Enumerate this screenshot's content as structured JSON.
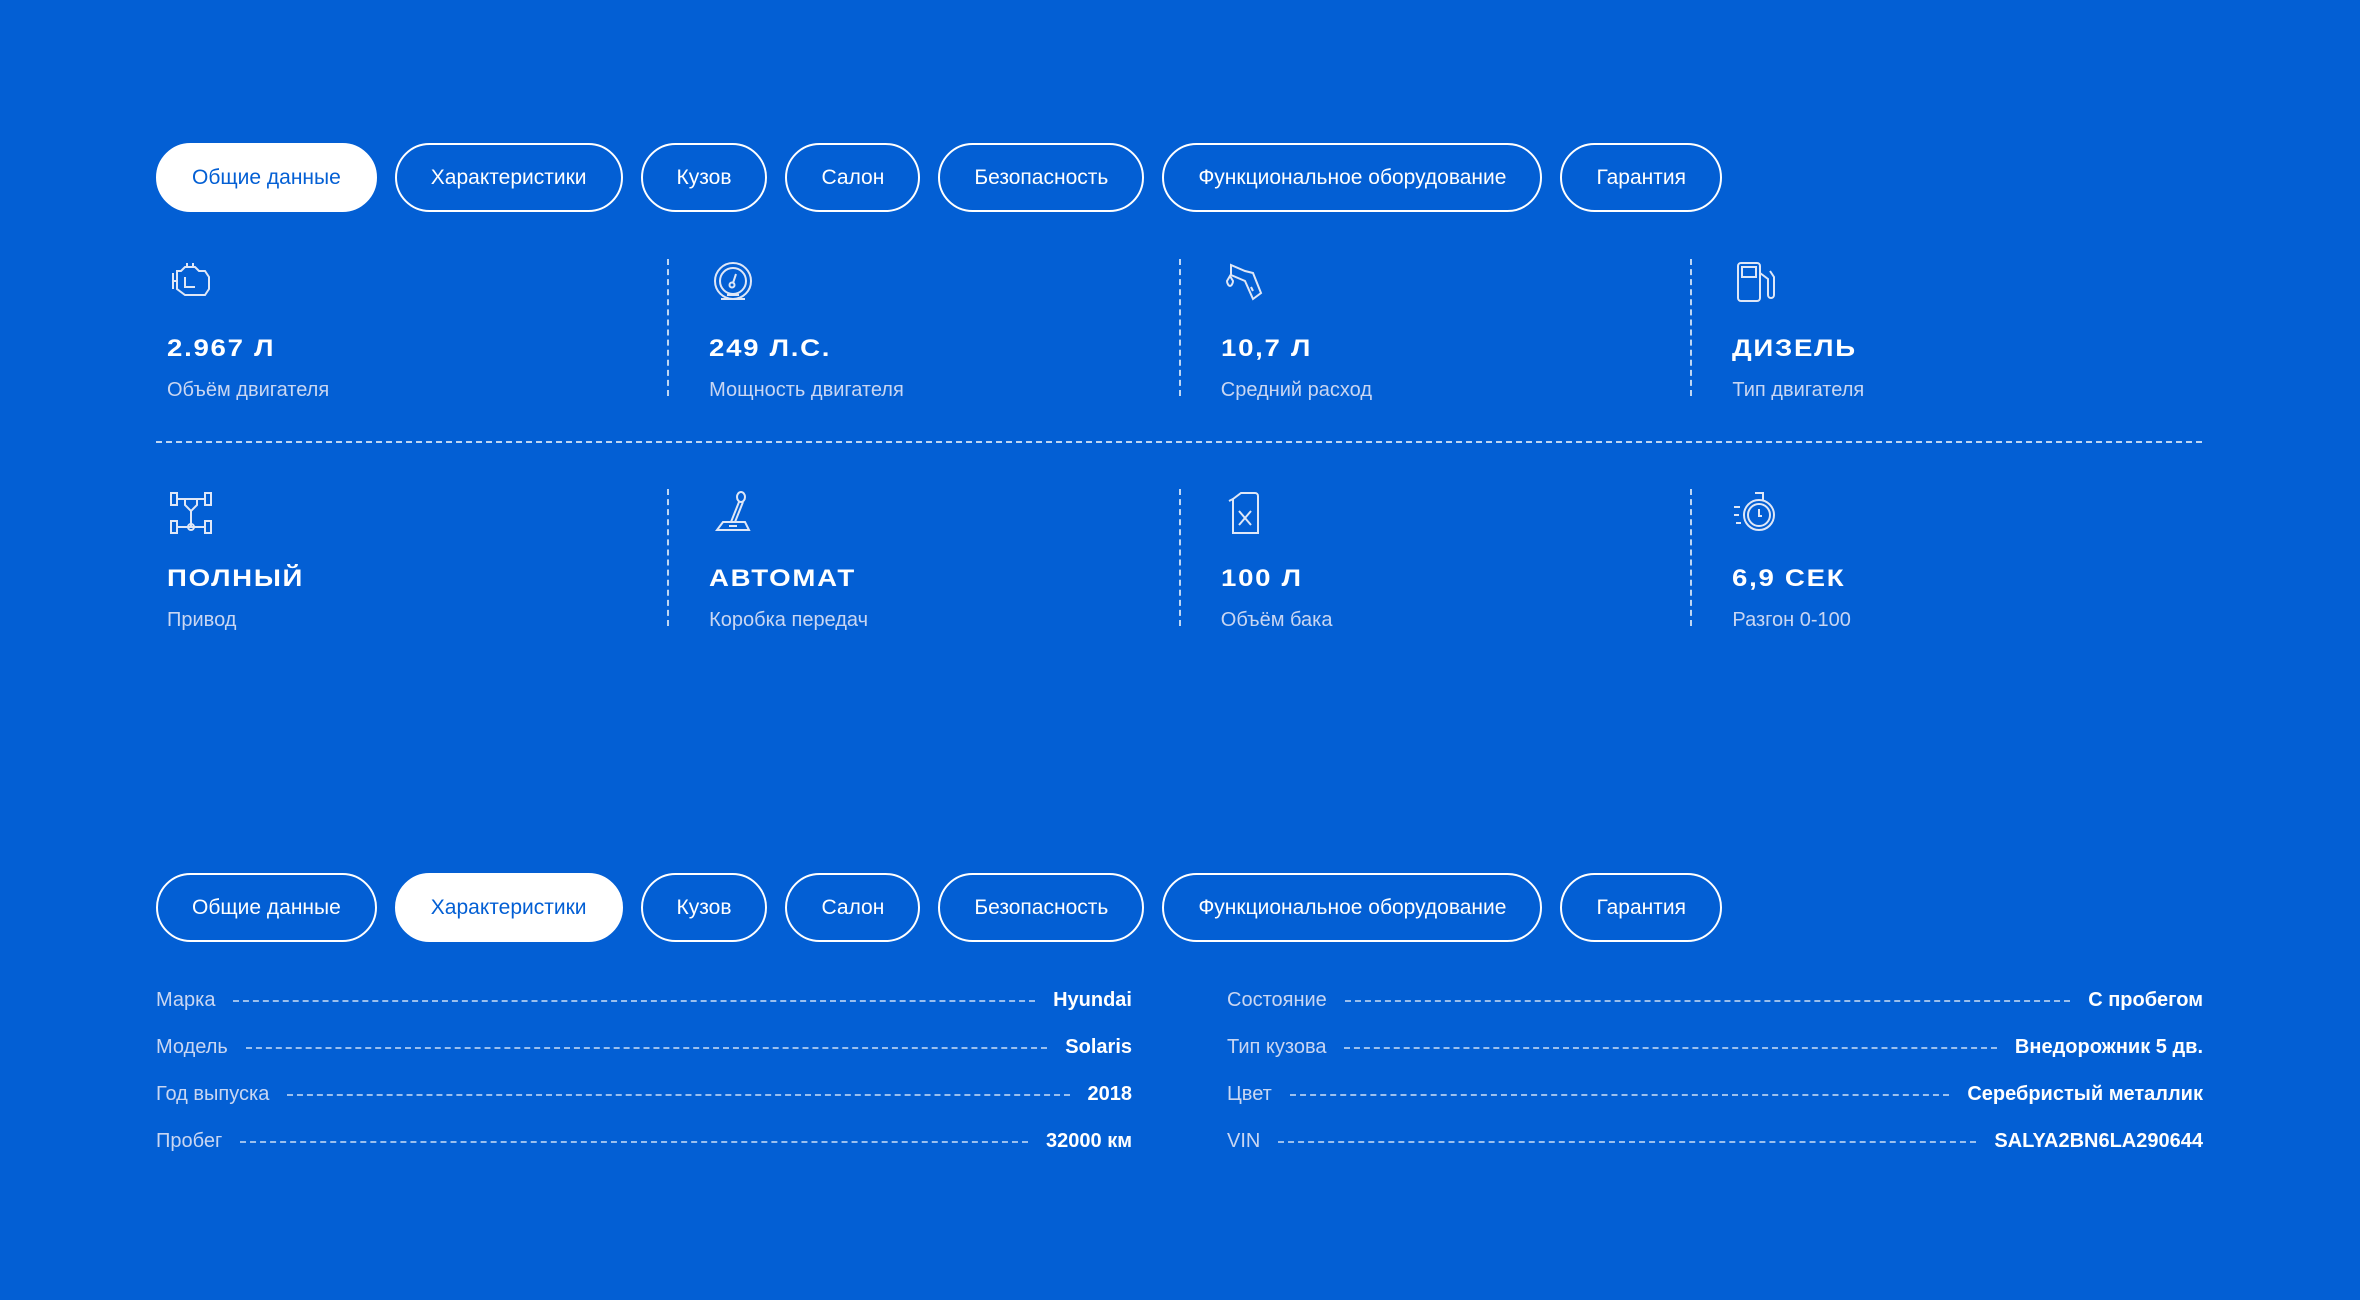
{
  "colors": {
    "background": "#035fd4",
    "active_tab_bg": "#ffffff",
    "label": "#c9d6f2"
  },
  "tabs_top": {
    "active": 0,
    "items": [
      {
        "label": "Общие данные"
      },
      {
        "label": "Характеристики"
      },
      {
        "label": "Кузов"
      },
      {
        "label": "Салон"
      },
      {
        "label": "Безопасность"
      },
      {
        "label": "Функциональное оборудование"
      },
      {
        "label": "Гарантия"
      }
    ]
  },
  "specs": [
    {
      "icon": "engine-icon",
      "value": "2.967 л",
      "label": "Объём двигателя"
    },
    {
      "icon": "speedometer-icon",
      "value": "249 л.с.",
      "label": "Мощность двигателя"
    },
    {
      "icon": "fuel-nozzle-icon",
      "value": "10,7 л",
      "label": "Средний расход"
    },
    {
      "icon": "fuel-pump-icon",
      "value": "Дизель",
      "label": "Тип двигателя"
    },
    {
      "icon": "drivetrain-icon",
      "value": "Полный",
      "label": "Привод"
    },
    {
      "icon": "gear-shifter-icon",
      "value": "Автомат",
      "label": "Коробка передач"
    },
    {
      "icon": "canister-icon",
      "value": "100 л",
      "label": "Объём бака"
    },
    {
      "icon": "stopwatch-icon",
      "value": "6,9 сек",
      "label": "Разгон 0-100"
    }
  ],
  "tabs_bottom": {
    "active": 1,
    "items": [
      {
        "label": "Общие данные"
      },
      {
        "label": "Характеристики"
      },
      {
        "label": "Кузов"
      },
      {
        "label": "Салон"
      },
      {
        "label": "Безопасность"
      },
      {
        "label": "Функциональное оборудование"
      },
      {
        "label": "Гарантия"
      }
    ]
  },
  "characteristics": {
    "left": [
      {
        "key": "Марка",
        "value": "Hyundai"
      },
      {
        "key": "Модель",
        "value": "Solaris"
      },
      {
        "key": "Год выпуска",
        "value": "2018"
      },
      {
        "key": "Пробег",
        "value": "32000 км"
      }
    ],
    "right": [
      {
        "key": "Состояние",
        "value": "С пробегом"
      },
      {
        "key": "Тип кузова",
        "value": "Внедорожник 5 дв."
      },
      {
        "key": "Цвет",
        "value": "Серебристый металлик"
      },
      {
        "key": "VIN",
        "value": "SALYA2BN6LA290644"
      }
    ]
  }
}
